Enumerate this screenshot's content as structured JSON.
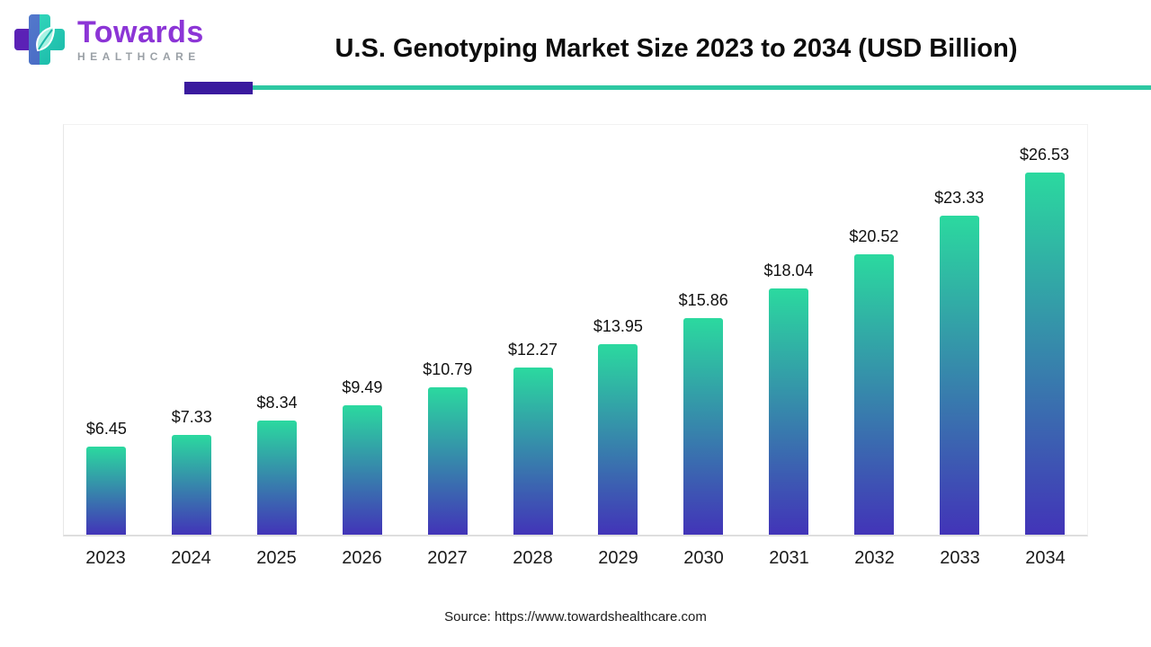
{
  "header": {
    "logo_name": "Towards",
    "logo_tagline": "HEALTHCARE",
    "title": "U.S. Genotyping Market Size 2023 to 2034 (USD Billion)"
  },
  "chart_data": {
    "type": "bar",
    "title": "U.S. Genotyping Market Size 2023 to 2034 (USD Billion)",
    "categories": [
      "2023",
      "2024",
      "2025",
      "2026",
      "2027",
      "2028",
      "2029",
      "2030",
      "2031",
      "2032",
      "2033",
      "2034"
    ],
    "values": [
      6.45,
      7.33,
      8.34,
      9.49,
      10.79,
      12.27,
      13.95,
      15.86,
      18.04,
      20.52,
      23.33,
      26.53
    ],
    "value_prefix": "$",
    "xlabel": "",
    "ylabel": "",
    "ylim": [
      0,
      30
    ],
    "grid": false,
    "legend": "none",
    "bar_gradient_top": "#2BD99F",
    "bar_gradient_bottom": "#4234B8"
  },
  "colors": {
    "divider_purple": "#3A1A9E",
    "divider_teal": "#2EC8A2",
    "logo_purple": "#8C35D6",
    "logo_gray": "#9aa0a6",
    "label_text": "#111111"
  },
  "footer": {
    "source": "Source: https://www.towardshealthcare.com"
  }
}
